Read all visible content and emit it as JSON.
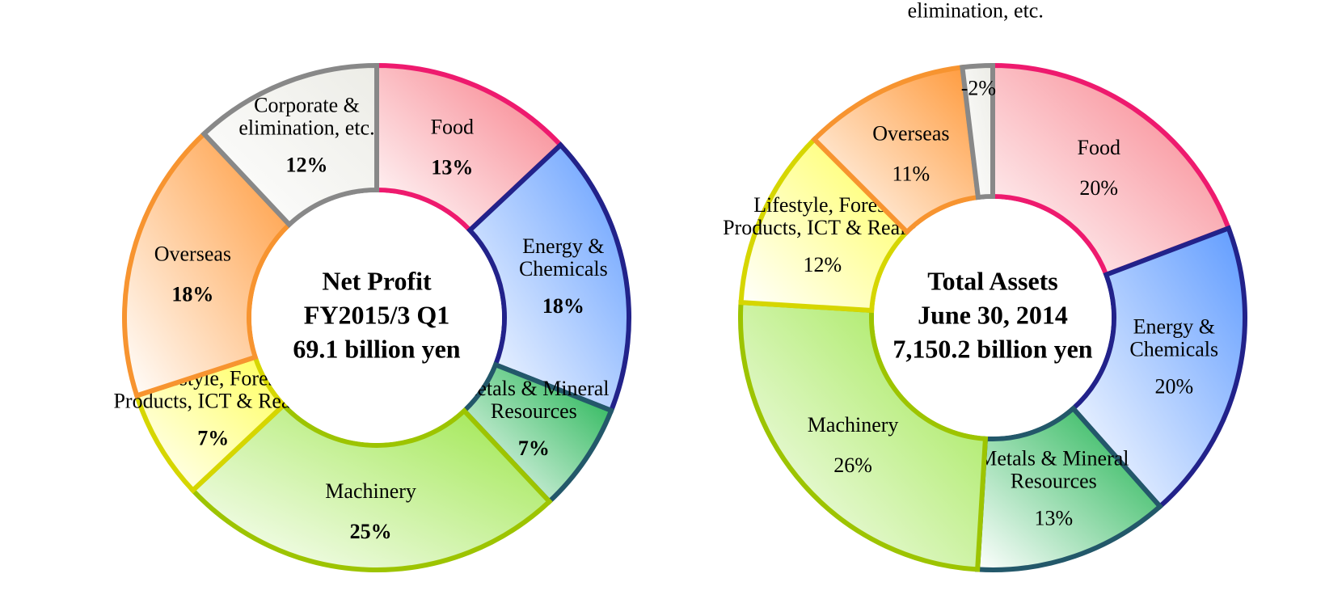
{
  "chart_data": [
    {
      "type": "pie",
      "donut": true,
      "center_text": [
        "Net Profit",
        "FY2015/3 Q1",
        "69.1 billion yen"
      ],
      "categories": [
        "Food",
        "Energy &\nChemicals",
        "Metals & Mineral\nResources",
        "Machinery",
        "Lifestyle, Forest\nProducts, ICT & Realty",
        "Overseas",
        "Corporate &\nelimination, etc."
      ],
      "values": [
        13,
        18,
        7,
        25,
        7,
        18,
        12
      ],
      "value_labels": [
        "13%",
        "18%",
        "7%",
        "25%",
        "7%",
        "18%",
        "12%"
      ],
      "value_label_weight": "bold",
      "colors": [
        "#f77b86",
        "#5f9bff",
        "#16b04a",
        "#9be648",
        "#ffff5a",
        "#ff9838",
        "#ecece6"
      ],
      "edge_colors": [
        "#ee1a6e",
        "#22228a",
        "#23586a",
        "#9dc400",
        "#d6d600",
        "#f79430",
        "#888888"
      ]
    },
    {
      "type": "pie",
      "donut": true,
      "center_text": [
        "Total Assets",
        "June 30, 2014",
        "7,150.2 billion yen"
      ],
      "categories": [
        "Food",
        "Energy &\nChemicals",
        "Metals & Mineral\nResources",
        "Machinery",
        "Lifestyle, Forest\nProducts, ICT & Realty",
        "Overseas",
        "Corporate &\nelimination, etc."
      ],
      "values": [
        20,
        20,
        13,
        26,
        12,
        11,
        -2
      ],
      "value_labels": [
        "20%",
        "20%",
        "13%",
        "26%",
        "12%",
        "11%",
        "-2%"
      ],
      "value_label_weight": "normal",
      "colors": [
        "#f77b86",
        "#5f9bff",
        "#16b04a",
        "#9be648",
        "#ffff5a",
        "#ff9838",
        "#ecece6"
      ],
      "edge_colors": [
        "#ee1a6e",
        "#22228a",
        "#23586a",
        "#9dc400",
        "#d6d600",
        "#f79430",
        "#888888"
      ]
    }
  ]
}
